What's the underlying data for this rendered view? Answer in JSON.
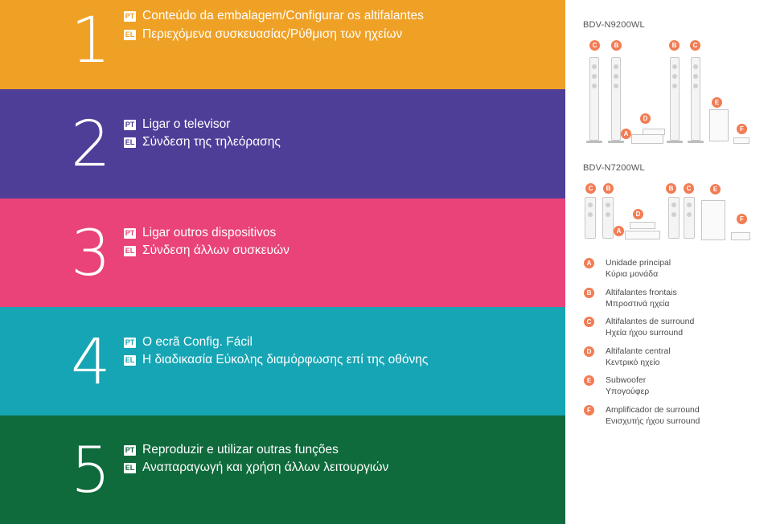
{
  "sections": [
    {
      "number": "1",
      "pt": "Conteúdo da embalagem/Configurar os altifalantes",
      "el": "Περιεχόμενα συσκευασίας/Ρύθμιση των ηχείων",
      "color": "#efa126"
    },
    {
      "number": "2",
      "pt": "Ligar o televisor",
      "el": "Σύνδεση της τηλεόρασης",
      "color": "#4f3e98"
    },
    {
      "number": "3",
      "pt": "Ligar outros dispositivos",
      "el": "Σύνδεση άλλων συσκευών",
      "color": "#e94379"
    },
    {
      "number": "4",
      "pt": "O ecrã Config. Fácil",
      "el": "Η διαδικασία Εύκολης διαμόρφωσης επί της οθόνης",
      "color": "#16a5b4"
    },
    {
      "number": "5",
      "pt": "Reproduzir e utilizar outras funções",
      "el": "Αναπαραγωγή και χρήση άλλων λειτουργιών",
      "color": "#0f6a3c"
    }
  ],
  "lang_tags": {
    "pt": "PT",
    "el": "EL"
  },
  "models": {
    "top": "BDV-N9200WL",
    "bottom": "BDV-N7200WL"
  },
  "badge_letters": {
    "a": "A",
    "b": "B",
    "c": "C",
    "d": "D",
    "e": "E",
    "f": "F"
  },
  "legend": [
    {
      "letter": "A",
      "pt": "Unidade principal",
      "el": "Κύρια μονάδα"
    },
    {
      "letter": "B",
      "pt": "Altifalantes frontais",
      "el": "Μπροστινά ηχεία"
    },
    {
      "letter": "C",
      "pt": "Altifalantes de surround",
      "el": "Ηχεία ήχου surround"
    },
    {
      "letter": "D",
      "pt": "Altifalante central",
      "el": "Κεντρικό ηχείο"
    },
    {
      "letter": "E",
      "pt": "Subwoofer",
      "el": "Υπογούφερ"
    },
    {
      "letter": "F",
      "pt": "Amplificador de surround",
      "el": "Ενισχυτής ήχου surround"
    }
  ],
  "colors": {
    "badge": "#f27c54",
    "text_gray": "#4b4b4b"
  }
}
